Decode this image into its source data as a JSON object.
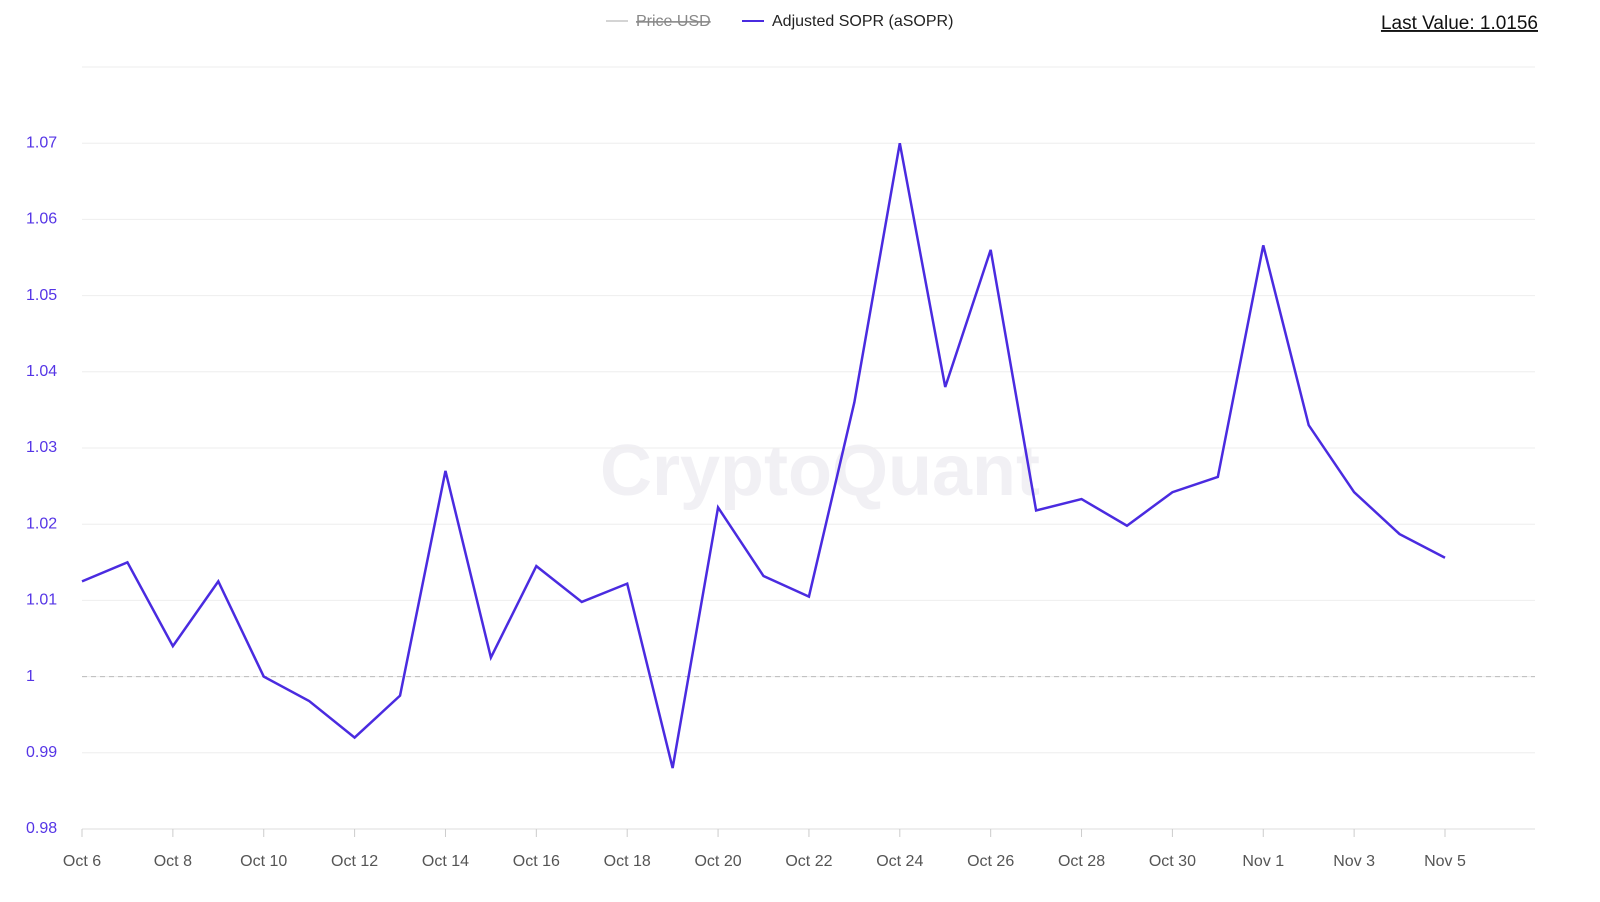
{
  "chart_data": {
    "type": "line",
    "last_value_label": "Last Value: 1.0156",
    "watermark": "CryptoQuant",
    "hidden_series": [
      {
        "name": "Price USD",
        "color": "#d4d4d4"
      }
    ],
    "categories": [
      "Oct 6",
      null,
      "Oct 8",
      null,
      "Oct 10",
      null,
      "Oct 12",
      null,
      "Oct 14",
      null,
      "Oct 16",
      null,
      "Oct 18",
      null,
      "Oct 20",
      null,
      "Oct 22",
      null,
      "Oct 24",
      null,
      "Oct 26",
      null,
      "Oct 28",
      null,
      "Oct 30",
      null,
      "Nov 1",
      null,
      "Nov 3",
      null,
      "Nov 5"
    ],
    "series": [
      {
        "name": "Adjusted SOPR (aSOPR)",
        "color": "#4a2be0",
        "values": [
          1.0125,
          1.015,
          1.004,
          1.0125,
          1.0,
          0.9968,
          0.992,
          0.9975,
          1.027,
          1.0025,
          1.0145,
          1.0098,
          1.0122,
          0.988,
          1.0222,
          1.0132,
          1.0105,
          1.036,
          1.07,
          1.038,
          1.056,
          1.0218,
          1.0233,
          1.0198,
          1.0242,
          1.0262,
          1.0566,
          1.033,
          1.0242,
          1.0187,
          1.0156
        ]
      }
    ],
    "ylim": [
      0.98,
      1.08
    ],
    "yticks": [
      0.98,
      0.99,
      1,
      1.01,
      1.02,
      1.03,
      1.04,
      1.05,
      1.06,
      1.07
    ],
    "reference_line": 1,
    "grid": true
  }
}
